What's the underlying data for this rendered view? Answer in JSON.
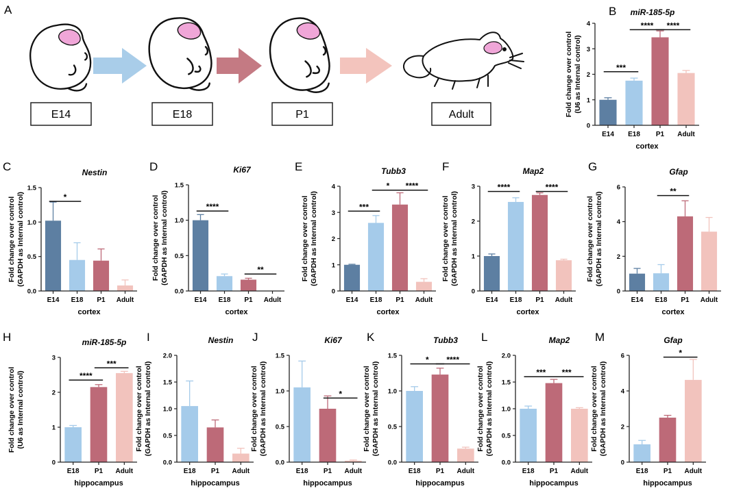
{
  "figure": {
    "panel_a": {
      "letter": "A",
      "stages": [
        {
          "label": "E14"
        },
        {
          "label": "E18"
        },
        {
          "label": "P1"
        },
        {
          "label": "Adult"
        }
      ],
      "arrow_colors": [
        "#a9cde9",
        "#c47a83",
        "#f3c4bd"
      ],
      "brain_color": "#f0a6d8"
    },
    "colors": {
      "E14": "#5d7fa2",
      "E18": "#a5cbea",
      "P1": "#bd6a78",
      "Adult": "#f2c3bd"
    }
  },
  "chart_data": [
    {
      "id": "B",
      "type": "bar",
      "title": "miR-185-5p",
      "ylabel": [
        "Fold change over control",
        "(U6 as Internal control)"
      ],
      "xlabel": "cortex",
      "categories": [
        "E14",
        "E18",
        "P1",
        "Adult"
      ],
      "values": [
        1.0,
        1.75,
        3.45,
        2.05
      ],
      "errors": [
        0.08,
        0.1,
        0.25,
        0.1
      ],
      "ylim": [
        0,
        4
      ],
      "yticks": [
        0,
        1,
        2,
        3,
        4
      ],
      "significance": [
        {
          "from": 0,
          "to": 1,
          "y": 2.1,
          "label": "***"
        },
        {
          "from": 1,
          "to": 2,
          "y": 3.75,
          "label": "****"
        },
        {
          "from": 2,
          "to": 3,
          "y": 3.75,
          "label": "****"
        }
      ]
    },
    {
      "id": "C",
      "type": "bar",
      "title": "Nestin",
      "ylabel": [
        "Fold change over control",
        "(GAPDH as Internal control)"
      ],
      "xlabel": "cortex",
      "categories": [
        "E14",
        "E18",
        "P1",
        "Adult"
      ],
      "values": [
        1.02,
        0.45,
        0.44,
        0.08
      ],
      "errors": [
        0.27,
        0.25,
        0.17,
        0.08
      ],
      "ylim": [
        0,
        1.5
      ],
      "yticks": [
        0.0,
        0.5,
        1.0,
        1.5
      ],
      "significance": [
        {
          "from": 0,
          "to": 1,
          "y": 1.3,
          "label": "*"
        }
      ]
    },
    {
      "id": "D",
      "type": "bar",
      "title": "Ki67",
      "ylabel": [
        "Fold change over control",
        "(GAPDH as Internal control)"
      ],
      "xlabel": "cortex",
      "categories": [
        "E14",
        "E18",
        "P1",
        "Adult"
      ],
      "values": [
        1.0,
        0.21,
        0.16,
        0.0
      ],
      "errors": [
        0.08,
        0.03,
        0.02,
        0.0
      ],
      "ylim": [
        0,
        1.5
      ],
      "yticks": [
        0.0,
        0.5,
        1.0,
        1.5
      ],
      "significance": [
        {
          "from": 0,
          "to": 1,
          "y": 1.13,
          "label": "****"
        },
        {
          "from": 2,
          "to": 3,
          "y": 0.24,
          "label": "**"
        }
      ]
    },
    {
      "id": "E",
      "type": "bar",
      "title": "Tubb3",
      "ylabel": [
        "Fold change over control",
        "(GAPDH as Internal control)"
      ],
      "xlabel": "cortex",
      "categories": [
        "E14",
        "E18",
        "P1",
        "Adult"
      ],
      "values": [
        1.0,
        2.6,
        3.3,
        0.35
      ],
      "errors": [
        0.02,
        0.28,
        0.45,
        0.12
      ],
      "ylim": [
        0,
        4
      ],
      "yticks": [
        0,
        1,
        2,
        3,
        4
      ],
      "significance": [
        {
          "from": 0,
          "to": 1,
          "y": 3.05,
          "label": "***"
        },
        {
          "from": 1,
          "to": 2,
          "y": 3.85,
          "label": "*"
        },
        {
          "from": 2,
          "to": 3,
          "y": 3.85,
          "label": "****"
        }
      ]
    },
    {
      "id": "F",
      "type": "bar",
      "title": "Map2",
      "ylabel": [
        "Fold change over control",
        "(GAPDH as Internal control)"
      ],
      "xlabel": "cortex",
      "categories": [
        "E14",
        "E18",
        "P1",
        "Adult"
      ],
      "values": [
        1.0,
        2.55,
        2.75,
        0.88
      ],
      "errors": [
        0.06,
        0.12,
        0.06,
        0.03
      ],
      "ylim": [
        0,
        3
      ],
      "yticks": [
        0,
        1,
        2,
        3
      ],
      "significance": [
        {
          "from": 0,
          "to": 1,
          "y": 2.85,
          "label": "****"
        },
        {
          "from": 2,
          "to": 3,
          "y": 2.85,
          "label": "****"
        }
      ]
    },
    {
      "id": "G",
      "type": "bar",
      "title": "Gfap",
      "ylabel": [
        "Fold change over control",
        "(GAPDH as Internal control)"
      ],
      "xlabel": "cortex",
      "categories": [
        "E14",
        "E18",
        "P1",
        "Adult"
      ],
      "values": [
        1.0,
        1.02,
        4.3,
        3.42
      ],
      "errors": [
        0.3,
        0.5,
        0.9,
        0.82
      ],
      "ylim": [
        0,
        6
      ],
      "yticks": [
        0,
        2,
        4,
        6
      ],
      "significance": [
        {
          "from": 1,
          "to": 2,
          "y": 5.5,
          "label": "**"
        }
      ]
    },
    {
      "id": "H",
      "type": "bar",
      "title": "miR-185-5p",
      "ylabel": [
        "Fold change over control",
        "(U6 as Internal control)"
      ],
      "xlabel": "hippocampus",
      "categories": [
        "E18",
        "P1",
        "Adult"
      ],
      "values": [
        1.0,
        2.15,
        2.55
      ],
      "errors": [
        0.05,
        0.07,
        0.05
      ],
      "ylim": [
        0,
        3
      ],
      "yticks": [
        0,
        1,
        2,
        3
      ],
      "significance": [
        {
          "from": 0,
          "to": 1,
          "y": 2.35,
          "label": "****"
        },
        {
          "from": 1,
          "to": 2,
          "y": 2.7,
          "label": "***"
        }
      ]
    },
    {
      "id": "I",
      "type": "bar",
      "title": "Nestin",
      "ylabel": [
        "Fold change over control",
        "(GAPDH as Internal control)"
      ],
      "xlabel": "hippocampus",
      "categories": [
        "E18",
        "P1",
        "Adult"
      ],
      "values": [
        1.05,
        0.65,
        0.16
      ],
      "errors": [
        0.47,
        0.14,
        0.1
      ],
      "ylim": [
        0,
        2.0
      ],
      "yticks": [
        0.0,
        0.5,
        1.0,
        1.5,
        2.0
      ],
      "significance": []
    },
    {
      "id": "J",
      "type": "bar",
      "title": "Ki67",
      "ylabel": [
        "Fold change over control",
        "(GAPDH as Internal control)"
      ],
      "xlabel": "hippocampus",
      "categories": [
        "E18",
        "P1",
        "Adult"
      ],
      "values": [
        1.05,
        0.75,
        0.02
      ],
      "errors": [
        0.37,
        0.18,
        0.01
      ],
      "ylim": [
        0,
        1.5
      ],
      "yticks": [
        0.0,
        0.5,
        1.0,
        1.5
      ],
      "significance": [
        {
          "from": 1,
          "to": 2,
          "y": 0.9,
          "label": "*"
        }
      ]
    },
    {
      "id": "K",
      "type": "bar",
      "title": "Tubb3",
      "ylabel": [
        "Fold change over control",
        "(GAPDH as Internal control)"
      ],
      "xlabel": "hippocampus",
      "categories": [
        "E18",
        "P1",
        "Adult"
      ],
      "values": [
        1.0,
        1.23,
        0.19
      ],
      "errors": [
        0.06,
        0.09,
        0.02
      ],
      "ylim": [
        0,
        1.5
      ],
      "yticks": [
        0.0,
        0.5,
        1.0,
        1.5
      ],
      "significance": [
        {
          "from": 0,
          "to": 1,
          "y": 1.38,
          "label": "*"
        },
        {
          "from": 1,
          "to": 2,
          "y": 1.38,
          "label": "****"
        }
      ]
    },
    {
      "id": "L",
      "type": "bar",
      "title": "Map2",
      "ylabel": [
        "Fold change over control",
        "(GAPDH as Internal control)"
      ],
      "xlabel": "hippocampus",
      "categories": [
        "E18",
        "P1",
        "Adult"
      ],
      "values": [
        1.0,
        1.48,
        1.0
      ],
      "errors": [
        0.05,
        0.07,
        0.02
      ],
      "ylim": [
        0,
        2.0
      ],
      "yticks": [
        0.0,
        0.5,
        1.0,
        1.5,
        2.0
      ],
      "significance": [
        {
          "from": 0,
          "to": 1,
          "y": 1.6,
          "label": "***"
        },
        {
          "from": 1,
          "to": 2,
          "y": 1.6,
          "label": "***"
        }
      ]
    },
    {
      "id": "M",
      "type": "bar",
      "title": "Gfap",
      "ylabel": [
        "Fold change over control",
        "(GAPDH as Internal control)"
      ],
      "xlabel": "hippocampus",
      "categories": [
        "E18",
        "P1",
        "Adult"
      ],
      "values": [
        1.0,
        2.5,
        4.62
      ],
      "errors": [
        0.22,
        0.13,
        1.15
      ],
      "ylim": [
        0,
        6
      ],
      "yticks": [
        0,
        2,
        4,
        6
      ],
      "significance": [
        {
          "from": 1,
          "to": 2,
          "y": 5.9,
          "label": "*"
        }
      ]
    }
  ]
}
